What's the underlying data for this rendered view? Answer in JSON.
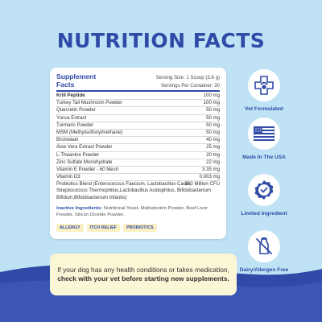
{
  "header": {
    "title": "NUTRITION FACTS"
  },
  "facts": {
    "title": "Supplement Facts",
    "serving_size": "Serving Size: 1 Scoop (3.6 g)",
    "servings_per_container": "Servings Per Container: 30",
    "rows": [
      {
        "name": "Krill Peptide",
        "amount": "100 mg"
      },
      {
        "name": "Turkey Tail Mushroom Powder",
        "amount": "100 mg"
      },
      {
        "name": "Quercetin Powder",
        "amount": "50 mg"
      },
      {
        "name": "Yucca Extract",
        "amount": "50 mg"
      },
      {
        "name": "Turmeric Powder",
        "amount": "50 mg"
      },
      {
        "name": "MSM (Methylsulfonylmethane)",
        "amount": "50 mg"
      },
      {
        "name": "Bromelain",
        "amount": "40 mg"
      },
      {
        "name": "Aloe Vera Extract Powder",
        "amount": "25 mg"
      },
      {
        "name": "L-Theanine Powder",
        "amount": "20 mg"
      },
      {
        "name": "Zinc Sulfate Monohydrate",
        "amount": "22 mg"
      },
      {
        "name": "Vitamin E Powder - 60 Mesh",
        "amount": "3.35 mg"
      },
      {
        "name": "Vitamin D3",
        "amount": "0.003 mg"
      }
    ],
    "blend": {
      "name": "Probiotics Blend (Enterococcus Faecium, Lactobacillus Casei, Streptococcus Thermophilus,Lactobacillus Acidophilus, Bifidobacterium Bifidum,Bifidobacterium Infantis)",
      "amount": "500 Million CFU"
    },
    "inactive_label": "Inactive Ingredients:",
    "inactive_text": " Nutritional Yeast, Maltodextrin Powder, Beef Liver Powder, Silicon Dioxide Powder.",
    "tags": [
      "ALLERGY",
      "ITCH RELIEF",
      "PROBIOTICS"
    ]
  },
  "features": [
    {
      "label": "Vet Formulated",
      "icon": "paw-cross-icon"
    },
    {
      "label": "Made In The USA",
      "icon": "us-flag-icon"
    },
    {
      "label": "Limited Ingredient",
      "icon": "check-badge-icon"
    },
    {
      "label": "Dairy/Allergen Free",
      "icon": "no-dairy-icon"
    }
  ],
  "note": {
    "text_pre": "If your dog has any health conditions or takes medication, ",
    "text_bold": "check with your vet before starting new supplements."
  },
  "colors": {
    "background": "#bfe3f5",
    "brand": "#2f4aa7",
    "wave": "#2f4aa7",
    "note_bg": "#fbf6d6"
  }
}
